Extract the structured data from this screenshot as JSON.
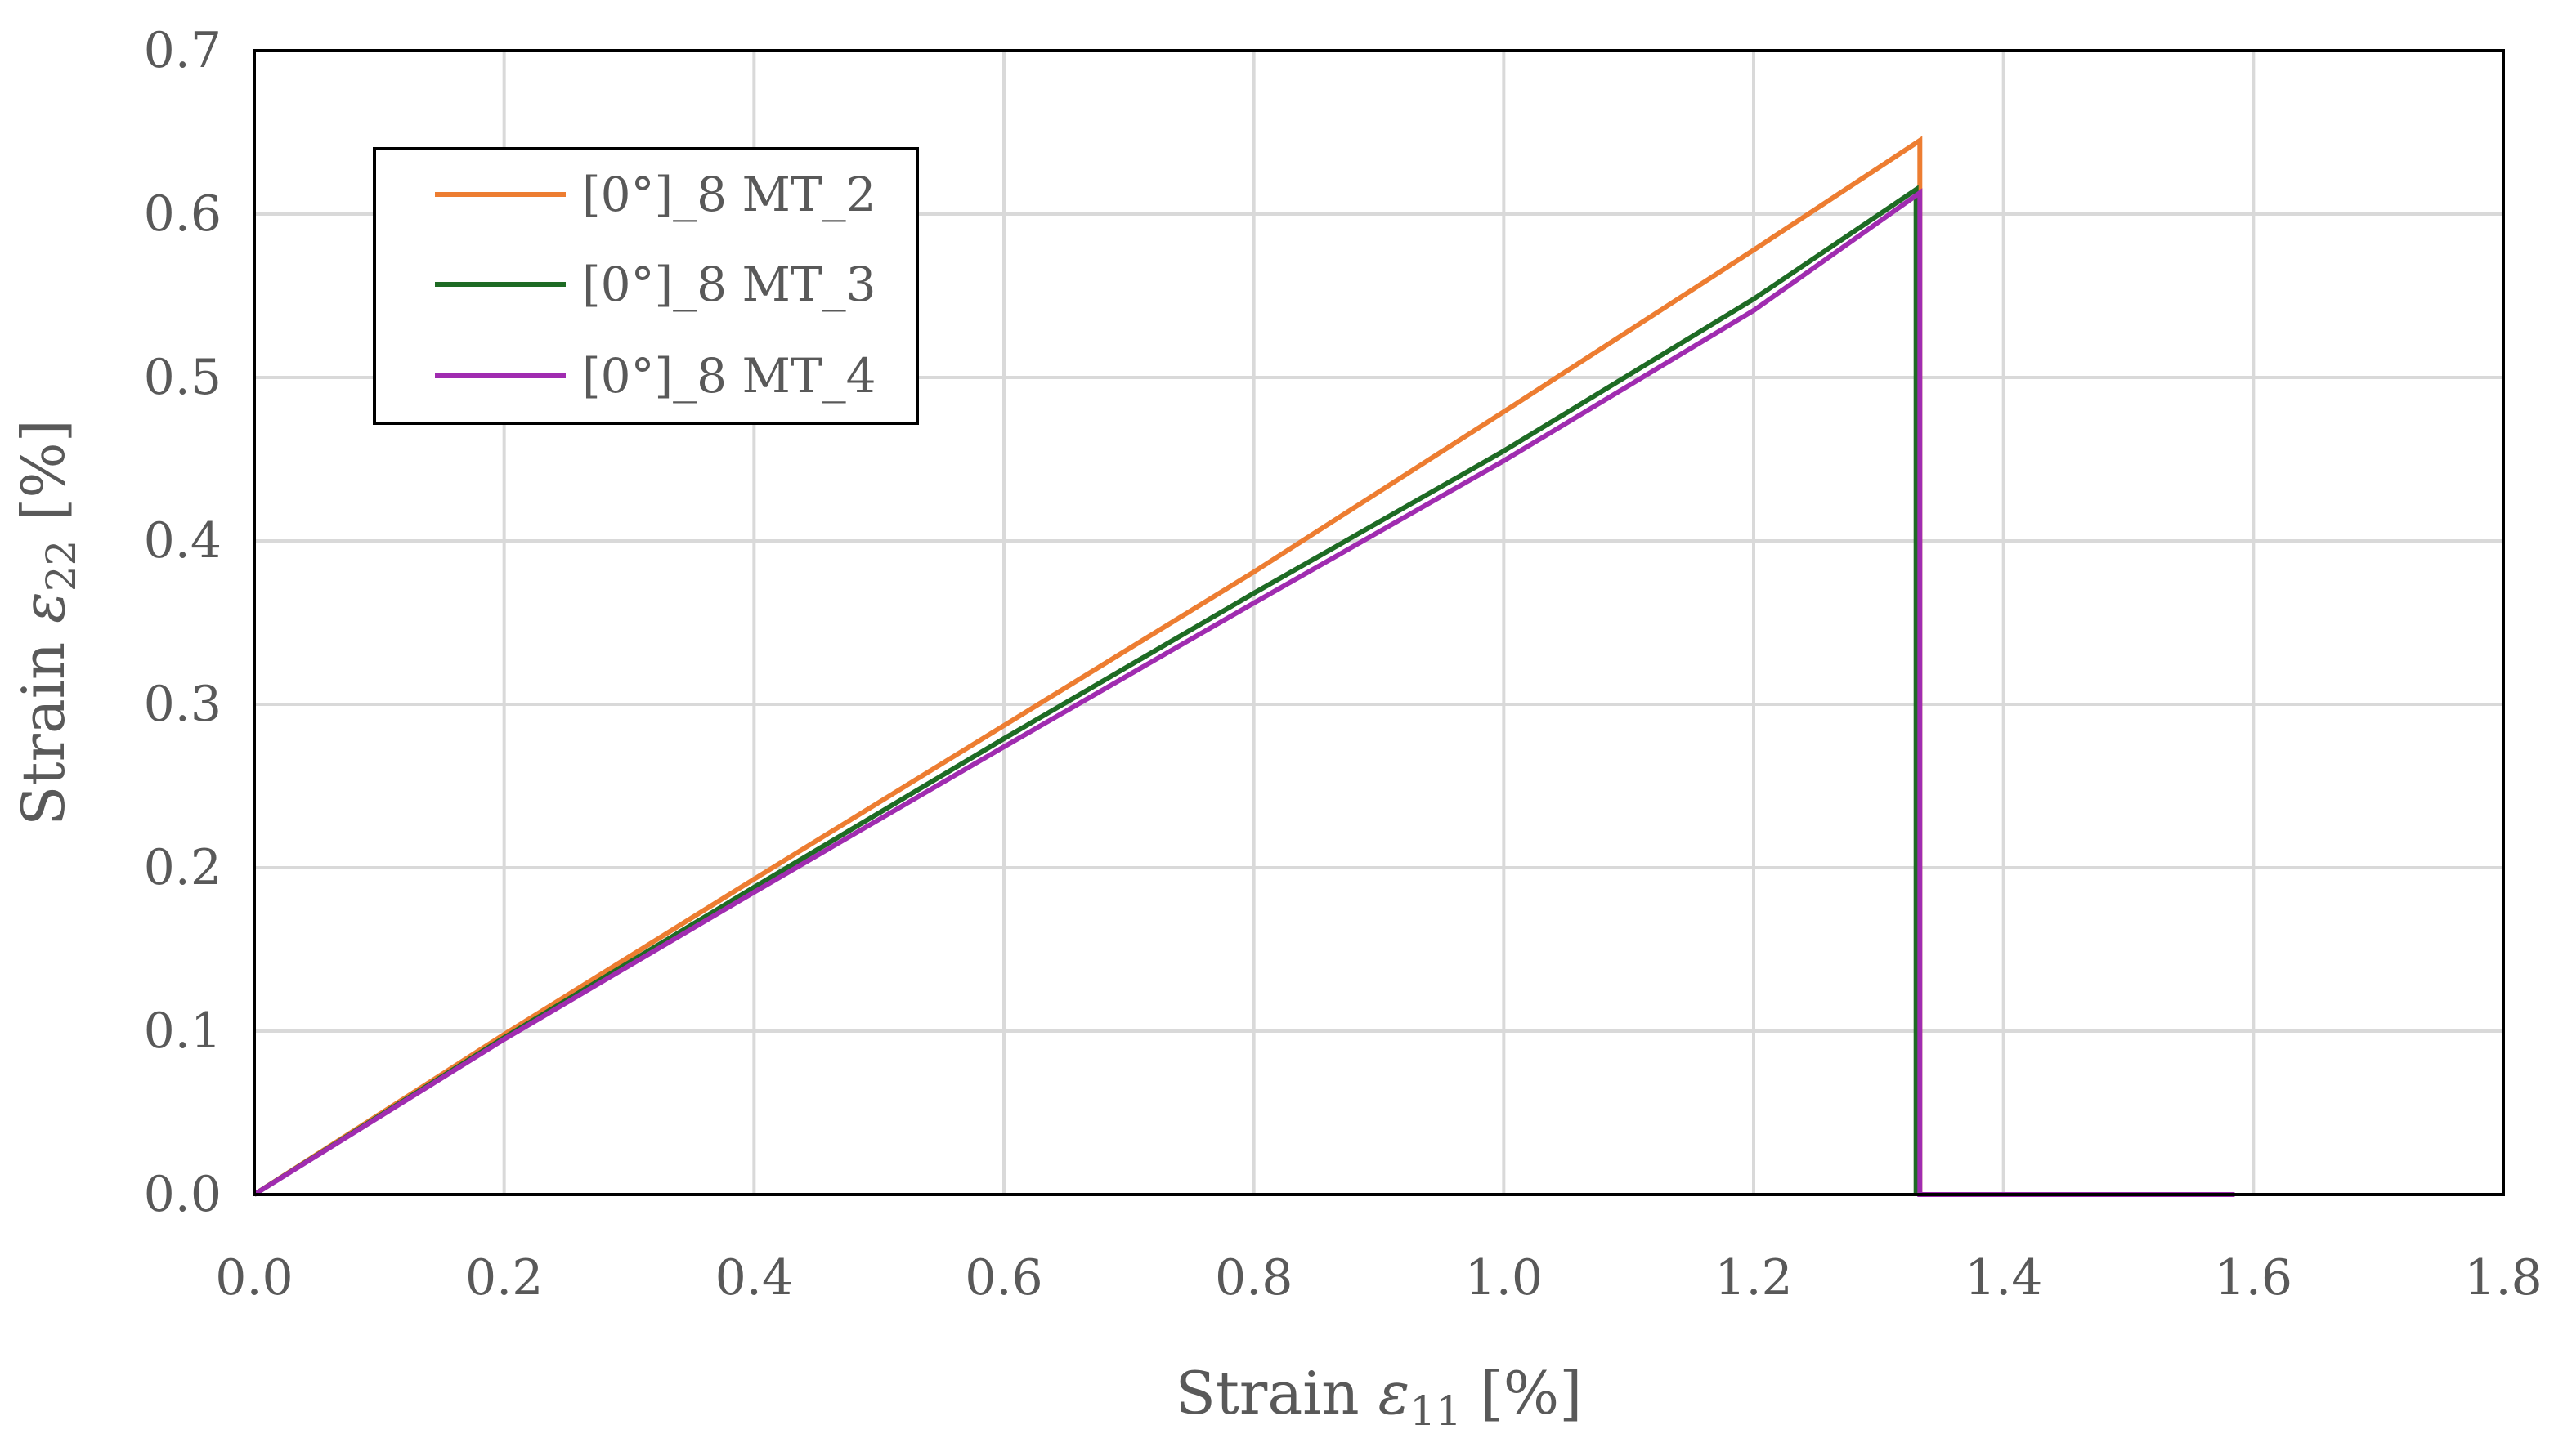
{
  "chart_data": {
    "type": "line",
    "title": "",
    "xlabel": {
      "prefix": "Strain ",
      "symbol": "ε",
      "subscript": "11",
      "suffix": " [%]"
    },
    "ylabel": {
      "prefix": "Strain ",
      "symbol": "ε",
      "subscript": "22",
      "suffix": " [%]"
    },
    "xlim": [
      0.0,
      1.8
    ],
    "ylim": [
      0.0,
      0.7
    ],
    "xticks": [
      0.0,
      0.2,
      0.4,
      0.6,
      0.8,
      1.0,
      1.2,
      1.4,
      1.6,
      1.8
    ],
    "yticks": [
      0.0,
      0.1,
      0.2,
      0.3,
      0.4,
      0.5,
      0.6,
      0.7
    ],
    "xtick_labels": [
      "0.0",
      "0.2",
      "0.4",
      "0.6",
      "0.8",
      "1.0",
      "1.2",
      "1.4",
      "1.6",
      "1.8"
    ],
    "ytick_labels": [
      "0.0",
      "0.1",
      "0.2",
      "0.3",
      "0.4",
      "0.5",
      "0.6",
      "0.7"
    ],
    "grid": true,
    "legend_position": "top-left",
    "series": [
      {
        "name": "[0°]_8 MT_2",
        "color": "#ED7D31",
        "x": [
          0.0,
          0.2,
          0.4,
          0.6,
          0.8,
          1.0,
          1.2,
          1.333,
          1.333,
          1.333
        ],
        "y": [
          0.0,
          0.098,
          0.193,
          0.287,
          0.381,
          0.479,
          0.578,
          0.645,
          0.6,
          0.0
        ]
      },
      {
        "name": "[0°]_8 MT_3",
        "color": "#1E6B24",
        "x": [
          0.0,
          0.2,
          0.4,
          0.6,
          0.8,
          1.0,
          1.2,
          1.33,
          1.33
        ],
        "y": [
          0.0,
          0.096,
          0.188,
          0.279,
          0.368,
          0.455,
          0.548,
          0.615,
          0.0
        ]
      },
      {
        "name": "[0°]_8 MT_4",
        "color": "#A02CB0",
        "x": [
          0.0,
          0.2,
          0.4,
          0.6,
          0.8,
          1.0,
          1.2,
          1.333,
          1.333,
          1.585
        ],
        "y": [
          0.0,
          0.095,
          0.185,
          0.274,
          0.362,
          0.449,
          0.541,
          0.613,
          0.0,
          0.0
        ]
      }
    ]
  }
}
